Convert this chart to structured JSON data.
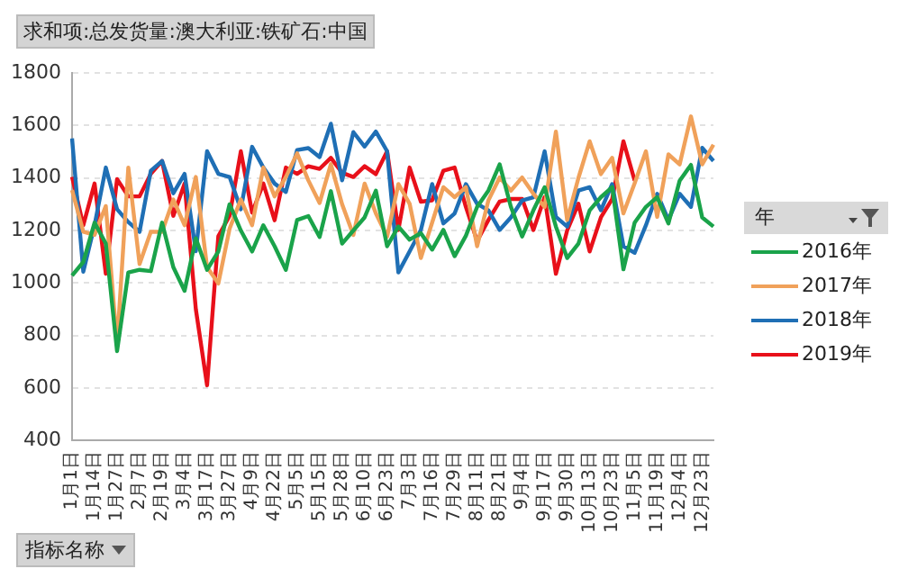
{
  "chart_data": {
    "type": "line",
    "title": "求和项:总发货量:澳大利亚:铁矿石:中国",
    "legend_title": "年",
    "legend": "right",
    "grid": "y",
    "marker": "none",
    "annotations": [
      "指标名称"
    ],
    "categories": [
      "1月1日",
      null,
      "1月14日",
      null,
      "1月27日",
      null,
      "2月7日",
      null,
      "2月19日",
      null,
      "3月4日",
      null,
      "3月17日",
      null,
      "3月27日",
      null,
      "4月9日",
      null,
      "4月22日",
      null,
      "5月5日",
      null,
      "5月15日",
      null,
      "5月28日",
      null,
      "6月10日",
      null,
      "6月23日",
      null,
      "7月3日",
      null,
      "7月16日",
      null,
      "7月29日",
      null,
      "8月11日",
      null,
      "8月21日",
      null,
      "9月4日",
      null,
      "9月17日",
      null,
      "9月30日",
      null,
      "10月13日",
      null,
      "10月23日",
      null,
      "11月5日",
      null,
      "11月19日",
      null,
      "12月4日",
      null,
      "12月23日",
      null
    ],
    "ylim": [
      400,
      1800
    ],
    "yticks": [
      400,
      600,
      800,
      1000,
      1200,
      1400,
      1600,
      1800
    ],
    "series": [
      {
        "name": "2016年",
        "color": "#1aa34a",
        "values": [
          1028,
          1080,
          1230,
          1150,
          740,
          1040,
          1050,
          1045,
          1230,
          1060,
          970,
          1170,
          1050,
          1120,
          1300,
          1200,
          1120,
          1220,
          1140,
          1050,
          1240,
          1255,
          1175,
          1350,
          1150,
          1200,
          1250,
          1352,
          1140,
          1215,
          1165,
          1190,
          1127,
          1202,
          1102,
          1180,
          1290,
          1352,
          1452,
          1290,
          1177,
          1277,
          1365,
          1215,
          1095,
          1150,
          1277,
          1327,
          1365,
          1052,
          1230,
          1290,
          1327,
          1227,
          1390,
          1450,
          1250,
          1215
        ]
      },
      {
        "name": "2017年",
        "color": "#f0a15a",
        "values": [
          1354,
          1195,
          1183,
          1293,
          765,
          1440,
          1072,
          1195,
          1195,
          1318,
          1220,
          1404,
          1060,
          998,
          1207,
          1318,
          1220,
          1440,
          1330,
          1404,
          1494,
          1391,
          1305,
          1453,
          1300,
          1183,
          1379,
          1265,
          1177,
          1377,
          1302,
          1095,
          1230,
          1365,
          1327,
          1365,
          1140,
          1315,
          1402,
          1352,
          1402,
          1340,
          1290,
          1577,
          1240,
          1400,
          1540,
          1415,
          1477,
          1265,
          1380,
          1502,
          1252,
          1490,
          1452,
          1635,
          1452,
          1527
        ]
      },
      {
        "name": "2018年",
        "color": "#1f6fb5",
        "values": [
          1551,
          1043,
          1220,
          1440,
          1281,
          1232,
          1195,
          1428,
          1465,
          1342,
          1416,
          1121,
          1502,
          1416,
          1404,
          1281,
          1519,
          1440,
          1379,
          1347,
          1507,
          1514,
          1480,
          1607,
          1391,
          1575,
          1520,
          1577,
          1502,
          1040,
          1120,
          1202,
          1377,
          1227,
          1265,
          1377,
          1302,
          1277,
          1202,
          1250,
          1315,
          1327,
          1502,
          1252,
          1215,
          1352,
          1365,
          1277,
          1377,
          1140,
          1115,
          1220,
          1340,
          1240,
          1340,
          1290,
          1515,
          1465
        ]
      },
      {
        "name": "2019年",
        "color": "#e8101a",
        "values": [
          1404,
          1220,
          1379,
          1035,
          1396,
          1330,
          1330,
          1416,
          1465,
          1256,
          1379,
          900,
          610,
          1178,
          1256,
          1502,
          1268,
          1379,
          1239,
          1440,
          1416,
          1445,
          1435,
          1477,
          1420,
          1404,
          1445,
          1415,
          1502,
          1202,
          1440,
          1310,
          1315,
          1428,
          1440,
          1290,
          1160,
          1240,
          1310,
          1320,
          1320,
          1202,
          1327,
          1035,
          1200,
          1302,
          1120,
          1250,
          1320,
          1540,
          1390,
          null,
          null,
          null,
          null,
          null,
          null,
          null
        ]
      }
    ]
  }
}
